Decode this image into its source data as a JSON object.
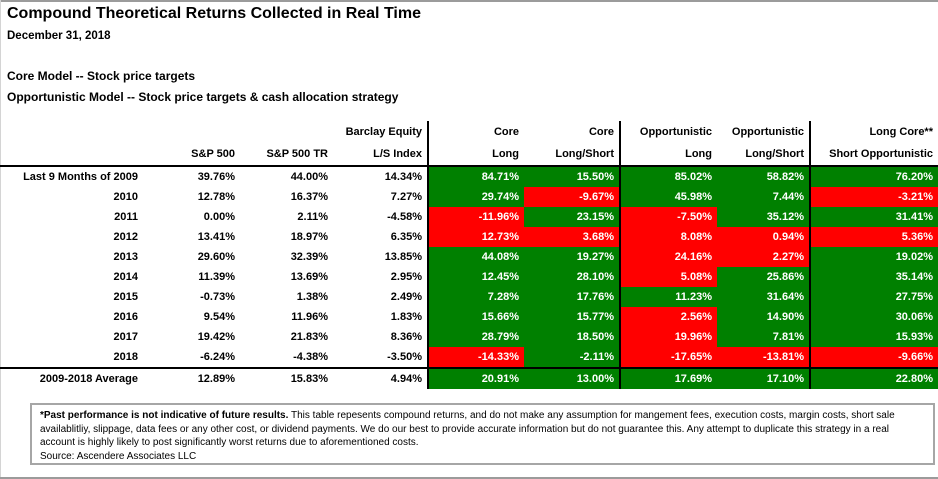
{
  "header": {
    "title": "Compound Theoretical Returns Collected in Real Time",
    "date": "December 31, 2018",
    "model_line1": "Core Model -- Stock price targets",
    "model_line2": "Opportunistic Model -- Stock price targets & cash allocation strategy"
  },
  "colors": {
    "positive_fill": "#008000",
    "negative_fill": "#FF0000",
    "fill_text": "#FFFFFF"
  },
  "chart_data": {
    "type": "table",
    "title": "Compound Theoretical Returns Collected in Real Time",
    "as_of_date": "December 31, 2018",
    "columns_line1": [
      "",
      "",
      "",
      "Barclay Equity",
      "Core",
      "Core",
      "Opportunistic",
      "Opportunistic",
      "Long Core**"
    ],
    "columns_line2": [
      "",
      "S&P 500",
      "S&P 500 TR",
      "L/S Index",
      "Long",
      "Long/Short",
      "Long",
      "Long/Short",
      "Short Opportunistic"
    ],
    "fill_legend": {
      "green": "outperform/positive",
      "red": "underperform/negative"
    },
    "rows": [
      {
        "label": "Last 9 Months of 2009",
        "values": [
          "39.76%",
          "44.00%",
          "14.34%",
          "84.71%",
          "15.50%",
          "85.02%",
          "58.82%",
          "76.20%"
        ],
        "fills": [
          null,
          null,
          null,
          "green",
          "green",
          "green",
          "green",
          "green"
        ]
      },
      {
        "label": "2010",
        "values": [
          "12.78%",
          "16.37%",
          "7.27%",
          "29.74%",
          "-9.67%",
          "45.98%",
          "7.44%",
          "-3.21%"
        ],
        "fills": [
          null,
          null,
          null,
          "green",
          "red",
          "green",
          "green",
          "red"
        ]
      },
      {
        "label": "2011",
        "values": [
          "0.00%",
          "2.11%",
          "-4.58%",
          "-11.96%",
          "23.15%",
          "-7.50%",
          "35.12%",
          "31.41%"
        ],
        "fills": [
          null,
          null,
          null,
          "red",
          "green",
          "red",
          "green",
          "green"
        ]
      },
      {
        "label": "2012",
        "values": [
          "13.41%",
          "18.97%",
          "6.35%",
          "12.73%",
          "3.68%",
          "8.08%",
          "0.94%",
          "5.36%"
        ],
        "fills": [
          null,
          null,
          null,
          "red",
          "red",
          "red",
          "red",
          "red"
        ]
      },
      {
        "label": "2013",
        "values": [
          "29.60%",
          "32.39%",
          "13.85%",
          "44.08%",
          "19.27%",
          "24.16%",
          "2.27%",
          "19.02%"
        ],
        "fills": [
          null,
          null,
          null,
          "green",
          "green",
          "red",
          "red",
          "green"
        ]
      },
      {
        "label": "2014",
        "values": [
          "11.39%",
          "13.69%",
          "2.95%",
          "12.45%",
          "28.10%",
          "5.08%",
          "25.86%",
          "35.14%"
        ],
        "fills": [
          null,
          null,
          null,
          "green",
          "green",
          "red",
          "green",
          "green"
        ]
      },
      {
        "label": "2015",
        "values": [
          "-0.73%",
          "1.38%",
          "2.49%",
          "7.28%",
          "17.76%",
          "11.23%",
          "31.64%",
          "27.75%"
        ],
        "fills": [
          null,
          null,
          null,
          "green",
          "green",
          "green",
          "green",
          "green"
        ]
      },
      {
        "label": "2016",
        "values": [
          "9.54%",
          "11.96%",
          "1.83%",
          "15.66%",
          "15.77%",
          "2.56%",
          "14.90%",
          "30.06%"
        ],
        "fills": [
          null,
          null,
          null,
          "green",
          "green",
          "red",
          "green",
          "green"
        ]
      },
      {
        "label": "2017",
        "values": [
          "19.42%",
          "21.83%",
          "8.36%",
          "28.79%",
          "18.50%",
          "19.96%",
          "7.81%",
          "15.93%"
        ],
        "fills": [
          null,
          null,
          null,
          "green",
          "green",
          "red",
          "green",
          "green"
        ]
      },
      {
        "label": "2018",
        "values": [
          "-6.24%",
          "-4.38%",
          "-3.50%",
          "-14.33%",
          "-2.11%",
          "-17.65%",
          "-13.81%",
          "-9.66%"
        ],
        "fills": [
          null,
          null,
          null,
          "red",
          "green",
          "red",
          "red",
          "red"
        ]
      },
      {
        "label": "2009-2018 Average",
        "summary": true,
        "values": [
          "12.89%",
          "15.83%",
          "4.94%",
          "20.91%",
          "13.00%",
          "17.69%",
          "17.10%",
          "22.80%"
        ],
        "fills": [
          null,
          null,
          null,
          "green",
          "green",
          "green",
          "green",
          "green"
        ]
      }
    ]
  },
  "footnote": {
    "bold_lead": "*Past performance is not indicative of future results.",
    "body": " This table repesents compound returns, and do not make any assumption for mangement fees, execution costs, margin costs, short sale availablitliy, slippage, data fees or any other cost, or dividend payments. We do our best to provide accurate information but do not guarantee this. Any attempt to duplicate this strategy in a real account is highly likely to post significantly worst returns due to aforementioned costs.",
    "source": "Source: Ascendere Associates LLC"
  }
}
